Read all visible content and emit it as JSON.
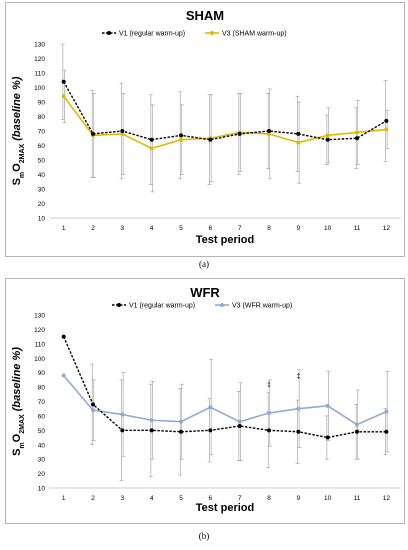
{
  "chart_data": [
    {
      "type": "line",
      "title": "SHAM",
      "xlabel": "Test period",
      "ylabel_main": "S",
      "ylabel_sub1": "m",
      "ylabel_mid": "O",
      "ylabel_sub2": "2MAX",
      "ylabel_tail": " (baseline %)",
      "ylim": [
        10,
        130
      ],
      "yticks": [
        "10",
        "20",
        "30",
        "40",
        "50",
        "60",
        "70",
        "80",
        "90",
        "100",
        "110",
        "120",
        "130"
      ],
      "categories": [
        "1",
        "2",
        "3",
        "4",
        "5",
        "6",
        "7",
        "8",
        "9",
        "10",
        "11",
        "12"
      ],
      "legend_position": "top-center",
      "grid": false,
      "series": [
        {
          "name": "V1 (regular warm-up)",
          "color": "#000000",
          "dashed": true,
          "values": [
            104,
            68,
            70,
            64,
            67,
            64,
            68,
            70,
            68,
            64,
            65,
            77
          ],
          "err": [
            26,
            30,
            33,
            31,
            30,
            31,
            28,
            26,
            26,
            17,
            21,
            28
          ]
        },
        {
          "name": "V3 (SHAM warm-up)",
          "color": "#e3b800",
          "dashed": false,
          "values": [
            94,
            67,
            68,
            58,
            64,
            65,
            69,
            68,
            62,
            67,
            69,
            71
          ],
          "err": [
            18,
            29,
            28,
            30,
            24,
            30,
            27,
            31,
            28,
            19,
            22,
            13
          ]
        }
      ],
      "annotations": []
    },
    {
      "type": "line",
      "title": "WFR",
      "xlabel": "Test period",
      "ylabel_main": "S",
      "ylabel_sub1": "m",
      "ylabel_mid": "O",
      "ylabel_sub2": "2MAX",
      "ylabel_tail": " (baseline %)",
      "ylim": [
        10,
        130
      ],
      "yticks": [
        "10",
        "20",
        "30",
        "40",
        "50",
        "60",
        "70",
        "80",
        "90",
        "100",
        "110",
        "120",
        "130"
      ],
      "categories": [
        "1",
        "2",
        "3",
        "4",
        "5",
        "6",
        "7",
        "8",
        "9",
        "10",
        "11",
        "12"
      ],
      "legend_position": "top-center",
      "grid": false,
      "series": [
        {
          "name": "V1 (regular warm-up)",
          "color": "#000000",
          "dashed": true,
          "values": [
            115,
            68,
            50,
            50,
            49,
            50,
            53,
            50,
            49,
            45,
            49,
            49
          ],
          "err": [
            0,
            28,
            35,
            32,
            30,
            22,
            24,
            26,
            22,
            15,
            19,
            16
          ]
        },
        {
          "name": "V3 (WFR warm-up)",
          "color": "#8fa9d8",
          "dashed": false,
          "values": [
            88,
            64,
            61,
            57,
            56,
            66,
            56,
            62,
            65,
            67,
            54,
            63
          ],
          "err": [
            0,
            21,
            29,
            27,
            26,
            33,
            27,
            23,
            27,
            24,
            24,
            28
          ]
        }
      ],
      "annotations": [
        {
          "category": "8",
          "y": 80,
          "text": "‡"
        },
        {
          "category": "9",
          "y": 86,
          "text": "‡"
        }
      ]
    }
  ],
  "captions": {
    "a": "(a)",
    "b": "(b)"
  }
}
